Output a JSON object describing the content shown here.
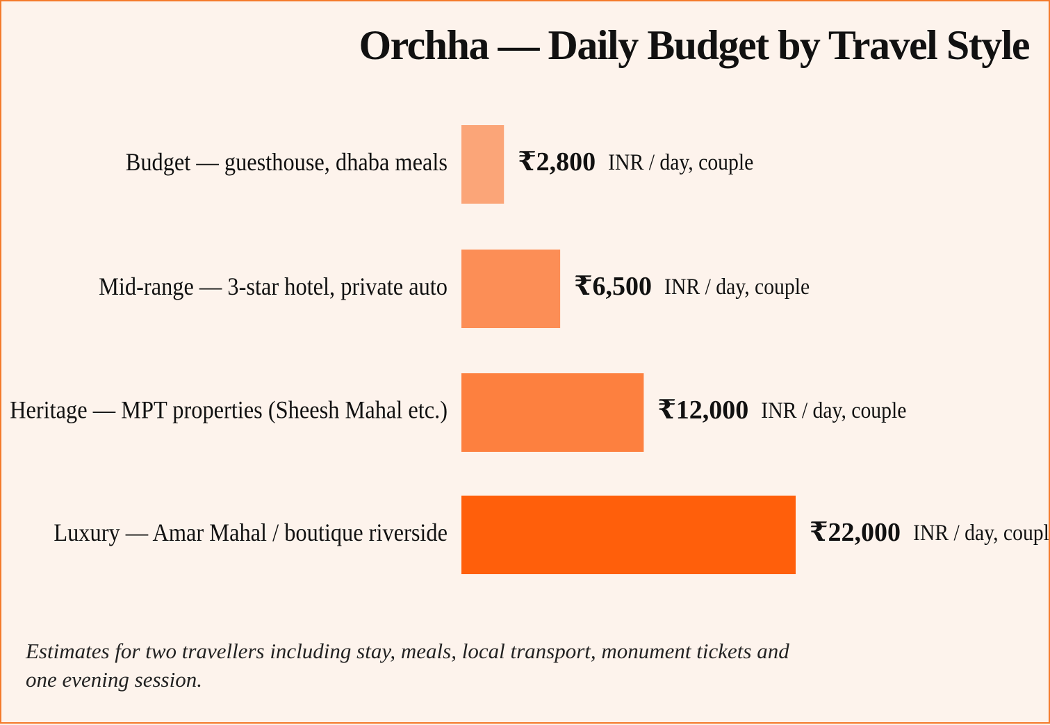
{
  "chart_data": {
    "type": "bar",
    "orientation": "horizontal",
    "title": "Orchha — Daily Budget by Travel Style",
    "categories": [
      "Budget — guesthouse, dhaba meals",
      "Mid-range — 3-star hotel, private auto",
      "Heritage — MPT properties (Sheesh Mahal etc.)",
      "Luxury — Amar Mahal / boutique riverside"
    ],
    "values": [
      2800,
      6500,
      12000,
      22000
    ],
    "value_labels": [
      "₹2,800",
      "₹6,500",
      "₹12,000",
      "₹22,000"
    ],
    "unit_label": "INR / day, couple",
    "bar_colors": [
      "#fba578",
      "#fc8e56",
      "#fd803f",
      "#ff5f0b"
    ],
    "grid": false,
    "legend": "none"
  },
  "footnote": "Estimates for two travellers including stay, meals, local transport, monument tickets and one evening session."
}
